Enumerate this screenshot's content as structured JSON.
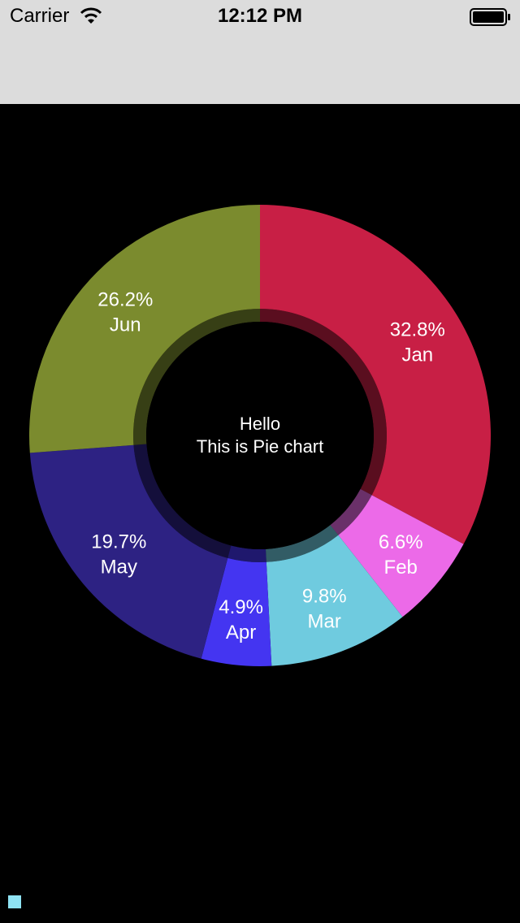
{
  "status_bar": {
    "carrier": "Carrier",
    "time": "12:12 PM",
    "wifi_icon": "wifi-icon",
    "battery_icon": "battery-icon"
  },
  "center_label": {
    "line1": "Hello",
    "line2": "This is Pie chart"
  },
  "colors": {
    "background": "#000000",
    "bar_background": "#dcdcdc",
    "label_text": "#ffffff",
    "corner_marker": "#8fe3f4"
  },
  "chart_data": {
    "type": "pie",
    "style": "donut",
    "title": "",
    "legend": "none",
    "slices": [
      {
        "label": "Jan",
        "value": 32.8,
        "value_label": "32.8%",
        "color": "#c81f45"
      },
      {
        "label": "Feb",
        "value": 6.6,
        "value_label": "6.6%",
        "color": "#ec6ae8"
      },
      {
        "label": "Mar",
        "value": 9.8,
        "value_label": "9.8%",
        "color": "#6fcbdf"
      },
      {
        "label": "Apr",
        "value": 4.9,
        "value_label": "4.9%",
        "color": "#4435f1"
      },
      {
        "label": "May",
        "value": 19.7,
        "value_label": "19.7%",
        "color": "#2d2283"
      },
      {
        "label": "Jun",
        "value": 26.2,
        "value_label": "26.2%",
        "color": "#7b8b2e"
      }
    ]
  }
}
